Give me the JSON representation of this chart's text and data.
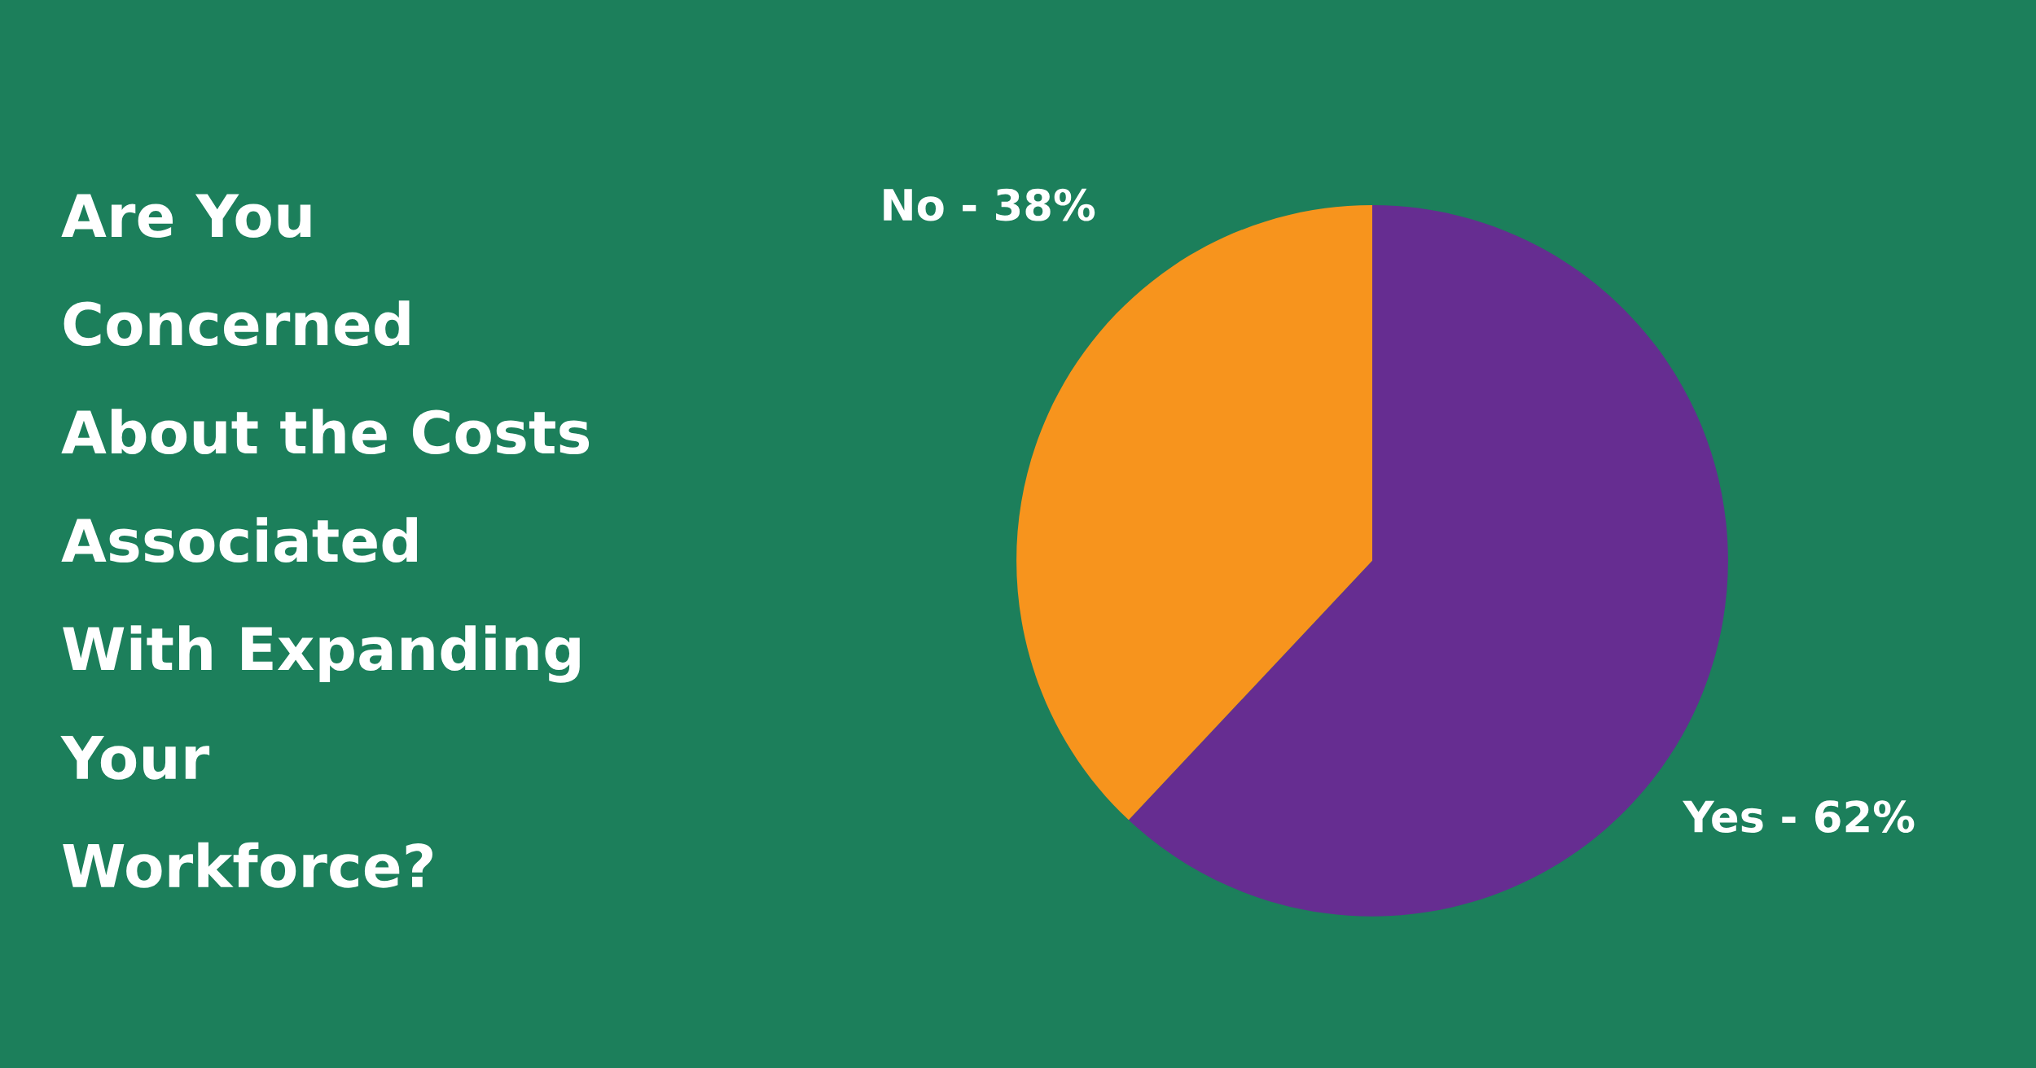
{
  "chart_data": {
    "type": "pie",
    "title": "Are You\nConcerned\nAbout the Costs\nAssociated\nWith Expanding\nYour\nWorkforce?",
    "categories": [
      "Yes - 62%",
      "No - 38%"
    ],
    "values": [
      62,
      38
    ],
    "colors": [
      "#662d91",
      "#f7941d"
    ],
    "legend": false
  }
}
